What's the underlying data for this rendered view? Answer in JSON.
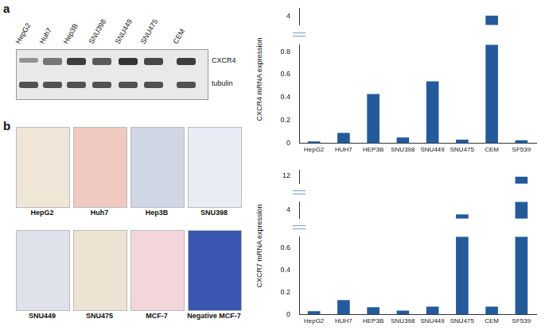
{
  "panels": [
    "a",
    "b"
  ],
  "blot": {
    "lanes": [
      "HepG2",
      "Huh7",
      "Hep3B",
      "SNU398",
      "SNU449",
      "SNU475",
      "CEM"
    ],
    "bands": [
      "CXCR4",
      "tubulin"
    ]
  },
  "micrographs": [
    "HepG2",
    "Huh7",
    "Hep3B",
    "SNU398",
    "SNU449",
    "SNU475",
    "MCF-7",
    "Negative MCF-7"
  ],
  "chart_data": [
    {
      "type": "bar",
      "ylabel": "CXCR4 mRNA expression",
      "categories": [
        "HepG2",
        "HUH7",
        "HEP3B",
        "SNU398",
        "SNU449",
        "SNU475",
        "CEM",
        "SF539"
      ],
      "values": [
        0.015,
        0.09,
        0.43,
        0.05,
        0.54,
        0.03,
        4.05,
        0.025
      ],
      "color": "#245a9a",
      "grid": false,
      "segments": [
        {
          "ylim": [
            3.6,
            4.4
          ],
          "yticks": [
            4
          ],
          "tick_labels": "y"
        },
        {
          "ylim": [
            0,
            0.86
          ],
          "yticks": [
            0,
            0.2,
            0.4,
            0.6,
            0.8
          ]
        }
      ]
    },
    {
      "type": "bar",
      "ylabel": "CXCR7 mRNA expression",
      "categories": [
        "HepG2",
        "HUH7",
        "HEP3B",
        "SNU398",
        "SNU449",
        "SNU475",
        "CEM",
        "SF539"
      ],
      "values": [
        0.03,
        0.13,
        0.065,
        0.035,
        0.07,
        3.5,
        0.07,
        11.8
      ],
      "color": "#245a9a",
      "grid": false,
      "segments": [
        {
          "ylim": [
            10.5,
            13
          ],
          "yticks": [
            12
          ],
          "tick_labels": "y"
        },
        {
          "ylim": [
            3,
            5
          ],
          "yticks": [
            4
          ],
          "tick_labels": "y"
        },
        {
          "ylim": [
            0,
            0.7
          ],
          "yticks": [
            0,
            0.2,
            0.4,
            0.6
          ]
        }
      ]
    }
  ]
}
